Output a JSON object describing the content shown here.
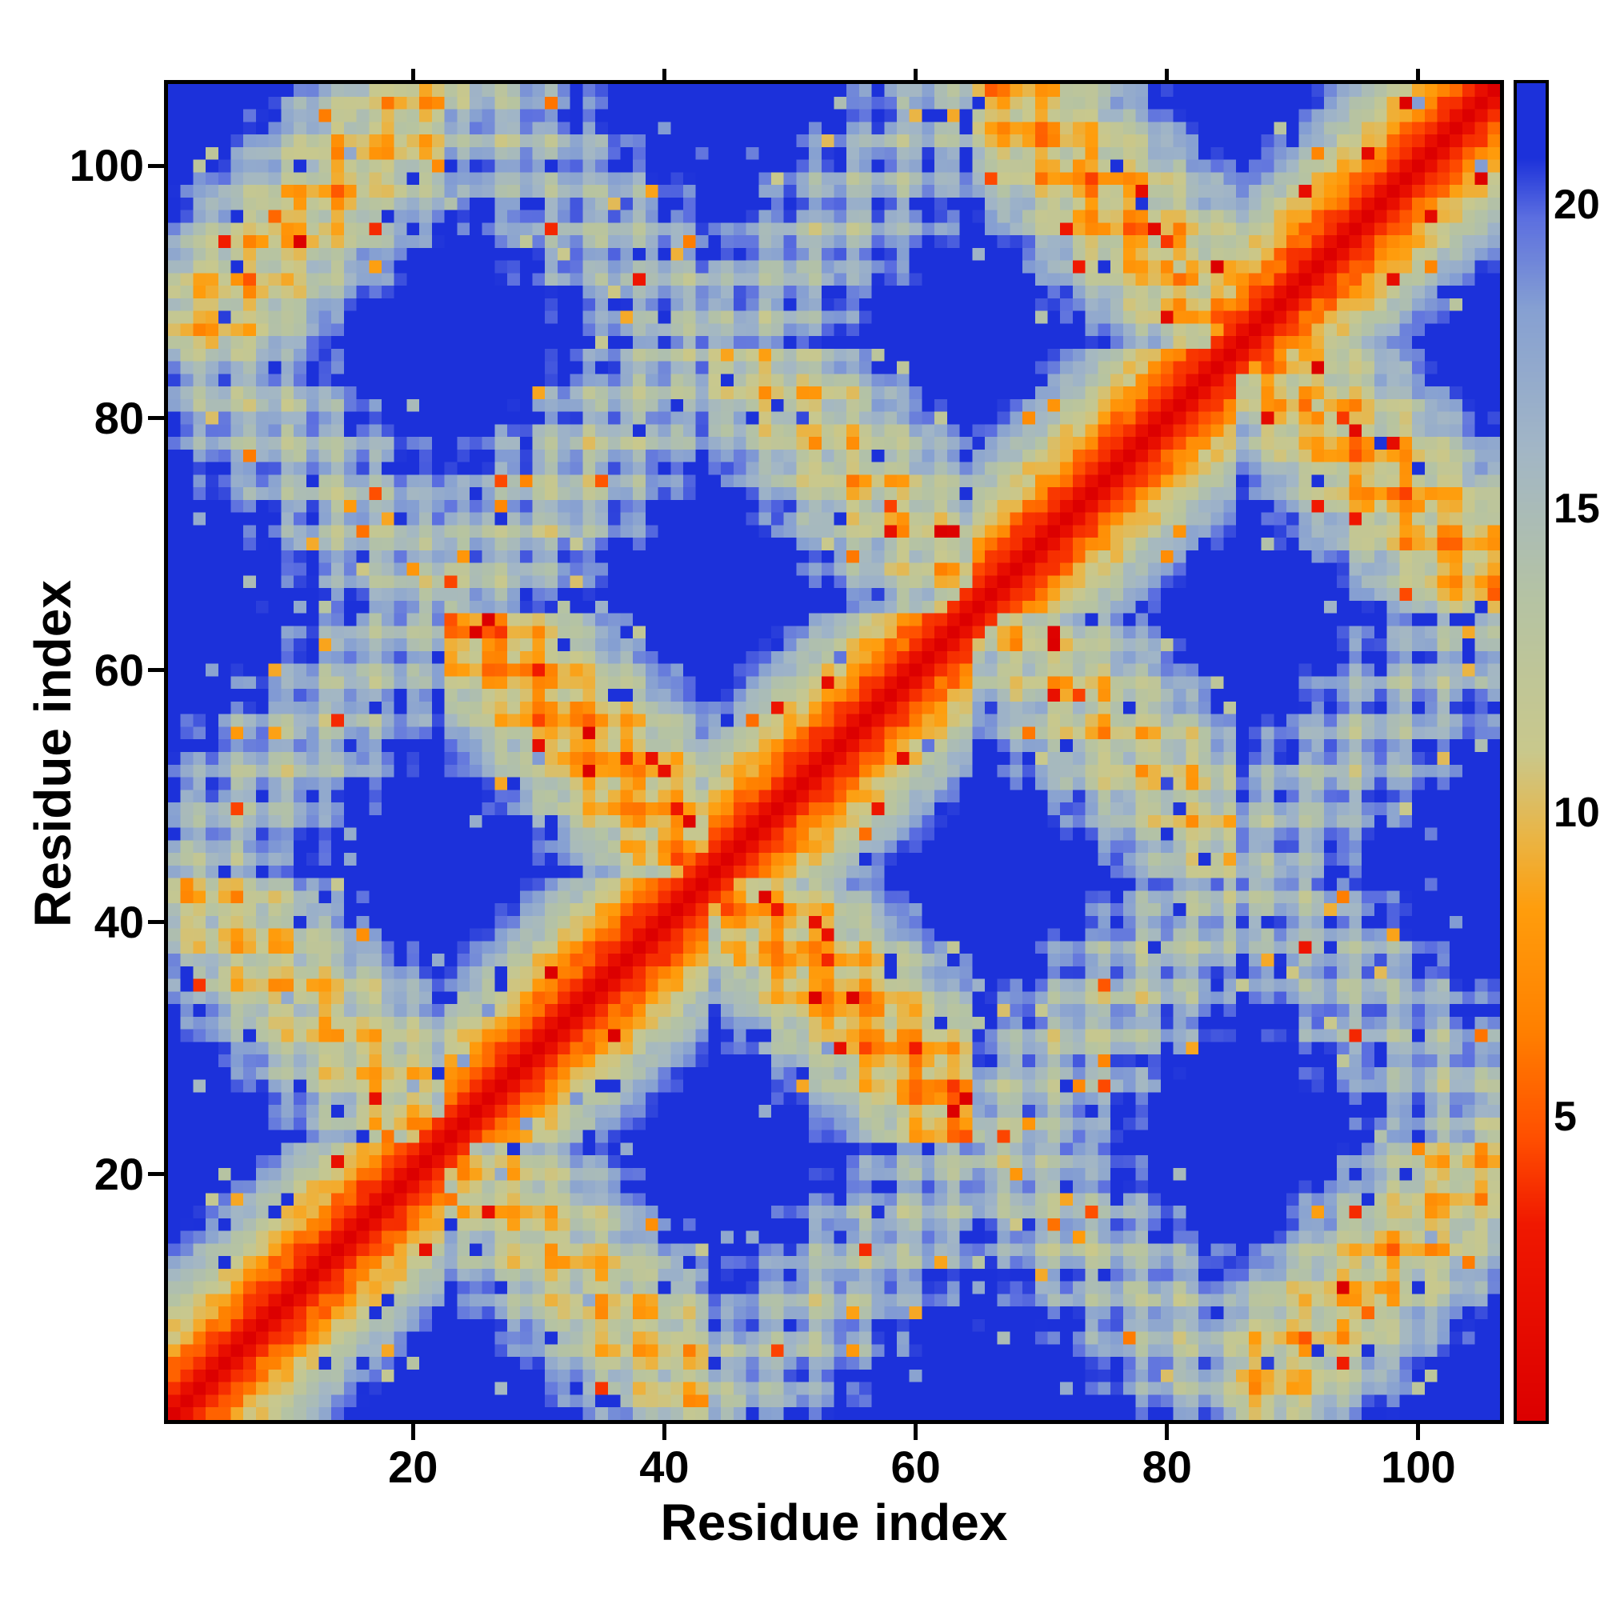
{
  "chart_data": {
    "type": "heatmap",
    "title": "",
    "xlabel": "Residue index",
    "ylabel": "Residue index",
    "n_residues": 106,
    "x_range": [
      1,
      106
    ],
    "y_range": [
      1,
      106
    ],
    "x_ticks": [
      20,
      40,
      60,
      80,
      100
    ],
    "y_ticks": [
      20,
      40,
      60,
      80,
      100
    ],
    "grid": false,
    "legend": "none",
    "values_semantics": "symmetric inter-residue distance map; red = close contact (~0), orange ~5-8, pale sage-green ~10-14, grey-blue ~15-19, deep blue = far (values capped at 22); solid red main diagonal with parallel and anti-parallel off-diagonal contact streaks forming a quasi-periodic lattice of blue diamonds",
    "colorbar": {
      "position": "right",
      "vmin": 0,
      "vmax": 22,
      "ticks": [
        5,
        10,
        15,
        20
      ]
    },
    "colormap_stops": [
      [
        0.0,
        "#dc0000"
      ],
      [
        3.2,
        "#f01800"
      ],
      [
        4.6,
        "#ff4e00"
      ],
      [
        6.4,
        "#ff8000"
      ],
      [
        8.4,
        "#ff9d0c"
      ],
      [
        9.6,
        "#eab545"
      ],
      [
        11.0,
        "#c9c88c"
      ],
      [
        13.5,
        "#b5c3a3"
      ],
      [
        16.0,
        "#a2b6c6"
      ],
      [
        18.3,
        "#86a0d2"
      ],
      [
        19.8,
        "#5c6fe0"
      ],
      [
        20.8,
        "#1c31da"
      ],
      [
        22.0,
        "#1c31da"
      ]
    ],
    "matrix_model": {
      "description": "procedural approximation of the depicted distance matrix: 5 antiparallel helical segments arranged on a ring; pairwise 3D distances (plus seeded speckle noise) reproduce the observed red diagonal, orange anti-parallel streaks at segment boundaries, parallel N/C-terminal corner streaks and blue diamond lattice",
      "segments": 5,
      "helix_period": 3.6,
      "helix_radius": 2.3,
      "rise": 1.5,
      "noise": 2.6,
      "radii": [
        8.2,
        7.8,
        8.5,
        8.0,
        8.3
      ],
      "phase_offsets": [
        0,
        0.18,
        -0.12,
        0.1,
        -0.05
      ],
      "twist_offsets": [
        0,
        1.3,
        2.1,
        0.7,
        2.8
      ],
      "z_offsets": [
        0,
        1.5,
        -1.0,
        2.0,
        0.5
      ]
    }
  },
  "colors": {
    "background": "#ffffff",
    "axis": "#000000",
    "deep_blue": "#1c31da",
    "sage": "#b5c3a3",
    "orange": "#ff8000",
    "red": "#dc0000"
  }
}
